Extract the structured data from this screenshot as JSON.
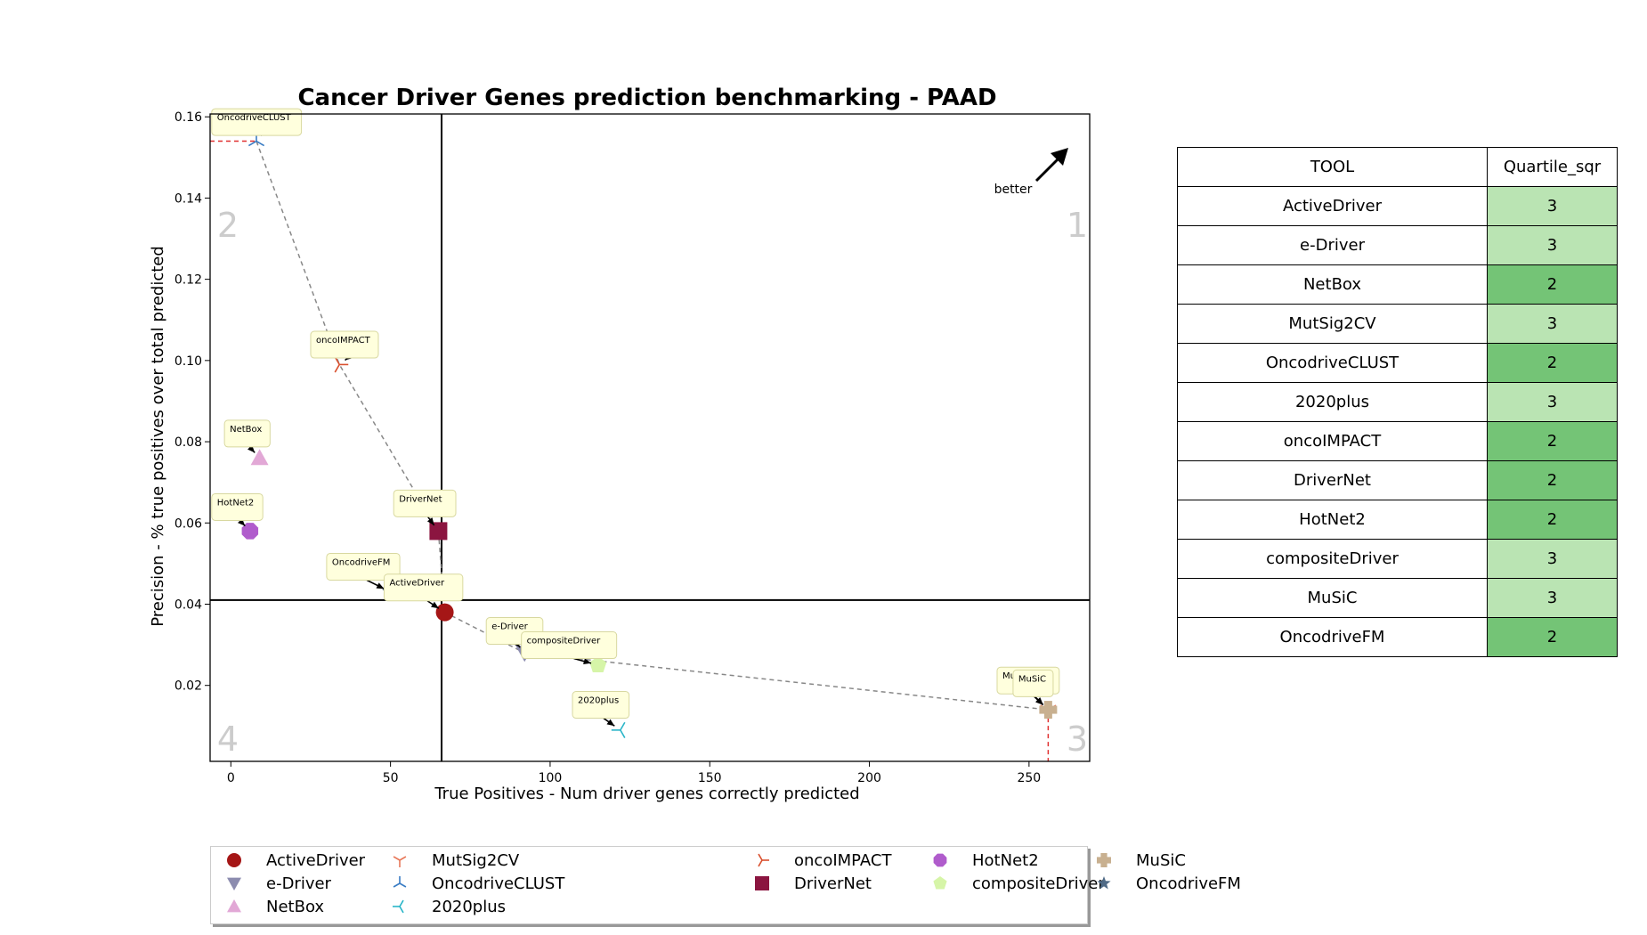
{
  "chart_data": {
    "type": "scatter",
    "title": "Cancer Driver Genes prediction benchmarking - PAAD",
    "xlabel": "True Positives - Num driver genes correctly predicted",
    "ylabel": "Precision - % true positives over total predicted",
    "xlim": [
      -6.5,
      269
    ],
    "ylim": [
      0.0013,
      0.1607
    ],
    "xticks": [
      0,
      50,
      100,
      150,
      200,
      250
    ],
    "yticks": [
      0.02,
      0.04,
      0.06,
      0.08,
      0.1,
      0.12,
      0.14,
      0.16
    ],
    "ytick_labels": [
      "0.02",
      "0.04",
      "0.06",
      "0.08",
      "0.10",
      "0.12",
      "0.14",
      "0.16"
    ],
    "quadrant_lines": {
      "x": 66,
      "y": 0.041
    },
    "quadrant_labels": [
      "1",
      "2",
      "3",
      "4"
    ],
    "better_label": "better",
    "points": [
      {
        "name": "ActiveDriver",
        "x": 67,
        "y": 0.038,
        "color": "#a51616",
        "marker": "circle"
      },
      {
        "name": "e-Driver",
        "x": 92,
        "y": 0.028,
        "color": "#8c8caf",
        "marker": "triangle-down"
      },
      {
        "name": "NetBox",
        "x": 9,
        "y": 0.076,
        "color": "#e2a8d6",
        "marker": "triangle-up"
      },
      {
        "name": "MutSig2CV",
        "x": 256,
        "y": 0.014,
        "color": "#e8785a",
        "marker": "tri-down"
      },
      {
        "name": "OncodriveCLUST",
        "x": 8,
        "y": 0.154,
        "color": "#3a7cc4",
        "marker": "tri-up"
      },
      {
        "name": "2020plus",
        "x": 122,
        "y": 0.009,
        "color": "#2ab5c8",
        "marker": "tri-left"
      },
      {
        "name": "oncoIMPACT",
        "x": 34,
        "y": 0.099,
        "color": "#d9502e",
        "marker": "tri-right"
      },
      {
        "name": "DriverNet",
        "x": 65,
        "y": 0.058,
        "color": "#8b1540",
        "marker": "square"
      },
      {
        "name": "HotNet2",
        "x": 6,
        "y": 0.058,
        "color": "#b05ccc",
        "marker": "octagon"
      },
      {
        "name": "compositeDriver",
        "x": 115,
        "y": 0.025,
        "color": "#d6f5a8",
        "marker": "pentagon"
      },
      {
        "name": "MuSiC",
        "x": 256,
        "y": 0.014,
        "color": "#c8b090",
        "marker": "plus"
      },
      {
        "name": "OncodriveFM",
        "x": 50,
        "y": 0.043,
        "color": "#4f6a86",
        "marker": "star"
      }
    ],
    "annotations": [
      {
        "text": "OncodriveCLUST",
        "x": -6,
        "y": 0.162
      },
      {
        "text": "oncoIMPACT",
        "x": 25,
        "y": 0.1072
      },
      {
        "text": "NetBox",
        "x": -2,
        "y": 0.0853
      },
      {
        "text": "HotNet2",
        "x": -6,
        "y": 0.0672
      },
      {
        "text": "DriverNet",
        "x": 51,
        "y": 0.0681
      },
      {
        "text": "OncodriveFM",
        "x": 30,
        "y": 0.0525
      },
      {
        "text": "ActiveDriver",
        "x": 48,
        "y": 0.0474
      },
      {
        "text": "e-Driver",
        "x": 80,
        "y": 0.0367
      },
      {
        "text": "compositeDriver",
        "x": 91,
        "y": 0.0332
      },
      {
        "text": "2020plus",
        "x": 107,
        "y": 0.0185
      },
      {
        "text": "MutSig2CV",
        "x": 240,
        "y": 0.0245
      },
      {
        "text": "MuSiC",
        "x": 245,
        "y": 0.0238
      }
    ],
    "frontier": [
      [
        8,
        0.154
      ],
      [
        34,
        0.099
      ],
      [
        65,
        0.058
      ],
      [
        67,
        0.038
      ],
      [
        92,
        0.028
      ],
      [
        256,
        0.014
      ]
    ],
    "legend": {
      "placement": "bottom",
      "columns": 6
    }
  },
  "table": {
    "headers": [
      "TOOL",
      "Quartile_sqr"
    ],
    "rows": [
      {
        "tool": "ActiveDriver",
        "q": "3"
      },
      {
        "tool": "e-Driver",
        "q": "3"
      },
      {
        "tool": "NetBox",
        "q": "2"
      },
      {
        "tool": "MutSig2CV",
        "q": "3"
      },
      {
        "tool": "OncodriveCLUST",
        "q": "2"
      },
      {
        "tool": "2020plus",
        "q": "3"
      },
      {
        "tool": "oncoIMPACT",
        "q": "2"
      },
      {
        "tool": "DriverNet",
        "q": "2"
      },
      {
        "tool": "HotNet2",
        "q": "2"
      },
      {
        "tool": "compositeDriver",
        "q": "3"
      },
      {
        "tool": "MuSiC",
        "q": "3"
      },
      {
        "tool": "OncodriveFM",
        "q": "2"
      }
    ]
  }
}
